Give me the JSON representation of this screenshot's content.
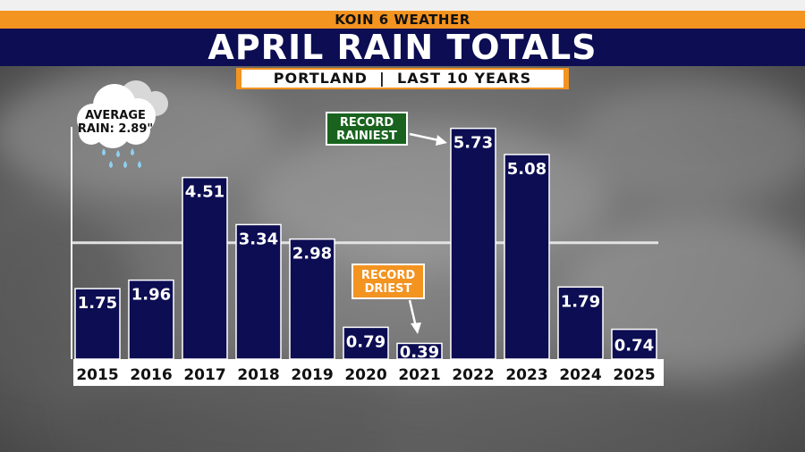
{
  "header": {
    "station": "KOIN 6 WEATHER",
    "title": "APRIL RAIN TOTALS",
    "subtitle": "PORTLAND  |  LAST 10 YEARS"
  },
  "average": {
    "label_line1": "AVERAGE",
    "label_line2": "RAIN: 2.89\"",
    "icon": "rain-cloud-icon"
  },
  "callouts": {
    "record_rainiest_line1": "RECORD",
    "record_rainiest_line2": "RAINIEST",
    "record_driest_line1": "RECORD",
    "record_driest_line2": "DRIEST"
  },
  "colors": {
    "bar": "#0c0d52",
    "accent_orange": "#f39320",
    "record_green": "#19631f",
    "average_line": "#e8e8e8"
  },
  "chart_data": {
    "type": "bar",
    "title": "APRIL RAIN TOTALS",
    "subtitle": "PORTLAND | LAST 10 YEARS",
    "categories": [
      "2015",
      "2016",
      "2017",
      "2018",
      "2019",
      "2020",
      "2021",
      "2022",
      "2023",
      "2024",
      "2025"
    ],
    "values": [
      1.75,
      1.96,
      4.51,
      3.34,
      2.98,
      0.79,
      0.39,
      5.73,
      5.08,
      1.79,
      0.74
    ],
    "value_labels": [
      "1.75",
      "1.96",
      "4.51",
      "3.34",
      "2.98",
      "0.79",
      "0.39",
      "5.73",
      "5.08",
      "1.79",
      "0.74"
    ],
    "average": 2.89,
    "ylim": [
      0,
      6.3
    ],
    "grid": false,
    "legend": "none"
  }
}
